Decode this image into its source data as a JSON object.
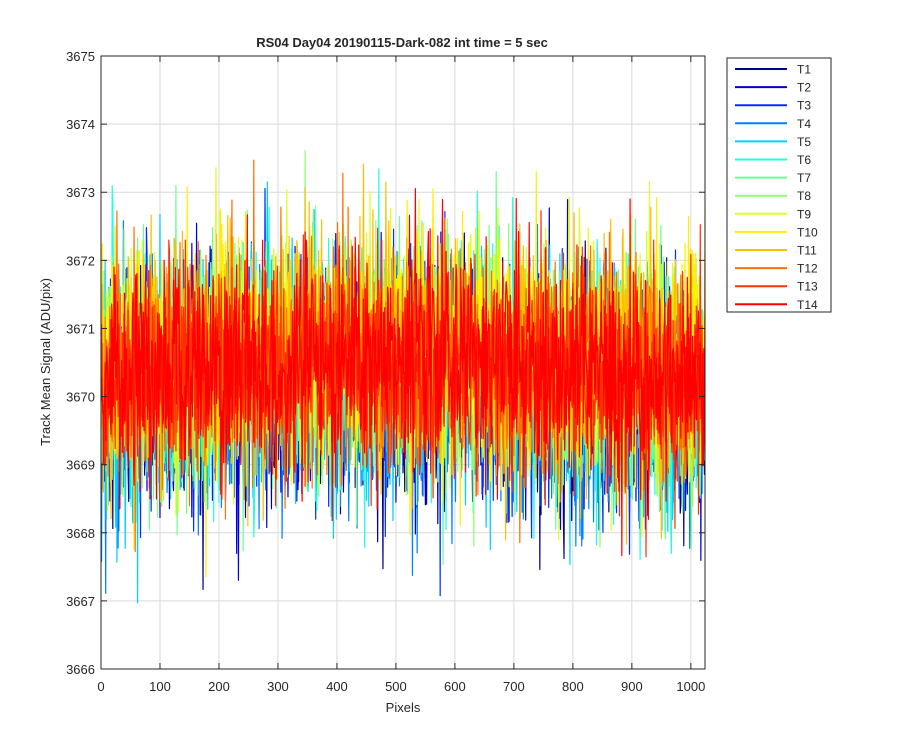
{
  "chart_data": {
    "type": "line",
    "title": "RS04 Day04 20190115-Dark-082 int time = 5 sec",
    "xlabel": "Pixels",
    "ylabel": "Track Mean Signal (ADU/pix)",
    "xlim": [
      0,
      1024
    ],
    "ylim": [
      3666,
      3675
    ],
    "xticks": [
      0,
      100,
      200,
      300,
      400,
      500,
      600,
      700,
      800,
      900,
      1000
    ],
    "yticks": [
      3666,
      3667,
      3668,
      3669,
      3670,
      3671,
      3672,
      3673,
      3674,
      3675
    ],
    "grid": true,
    "legend_position": "outside-top-right",
    "series_style": "noisy signal about a ~3670.4 baseline, peak-to-peak roughly 3667 to 3674",
    "series": [
      {
        "name": "T1",
        "color": "#00008F",
        "mean": 3670.0,
        "spread": 0.85
      },
      {
        "name": "T2",
        "color": "#0000DF",
        "mean": 3670.0,
        "spread": 0.85
      },
      {
        "name": "T3",
        "color": "#0030FF",
        "mean": 3670.05,
        "spread": 0.85
      },
      {
        "name": "T4",
        "color": "#0080FF",
        "mean": 3670.1,
        "spread": 0.85
      },
      {
        "name": "T5",
        "color": "#00CFFF",
        "mean": 3670.15,
        "spread": 0.85
      },
      {
        "name": "T6",
        "color": "#20FFDF",
        "mean": 3670.2,
        "spread": 0.85
      },
      {
        "name": "T7",
        "color": "#70FF8F",
        "mean": 3670.25,
        "spread": 0.85
      },
      {
        "name": "T8",
        "color": "#8FFF70",
        "mean": 3670.3,
        "spread": 0.85
      },
      {
        "name": "T9",
        "color": "#DFFF20",
        "mean": 3670.45,
        "spread": 0.85
      },
      {
        "name": "T10",
        "color": "#FFEF00",
        "mean": 3670.5,
        "spread": 0.85
      },
      {
        "name": "T11",
        "color": "#FFBF00",
        "mean": 3670.4,
        "spread": 0.85
      },
      {
        "name": "T12",
        "color": "#FF7000",
        "mean": 3670.35,
        "spread": 0.85
      },
      {
        "name": "T13",
        "color": "#FF3000",
        "mean": 3670.3,
        "spread": 0.8
      },
      {
        "name": "T14",
        "color": "#FF0000",
        "mean": 3670.3,
        "spread": 0.8
      }
    ]
  }
}
